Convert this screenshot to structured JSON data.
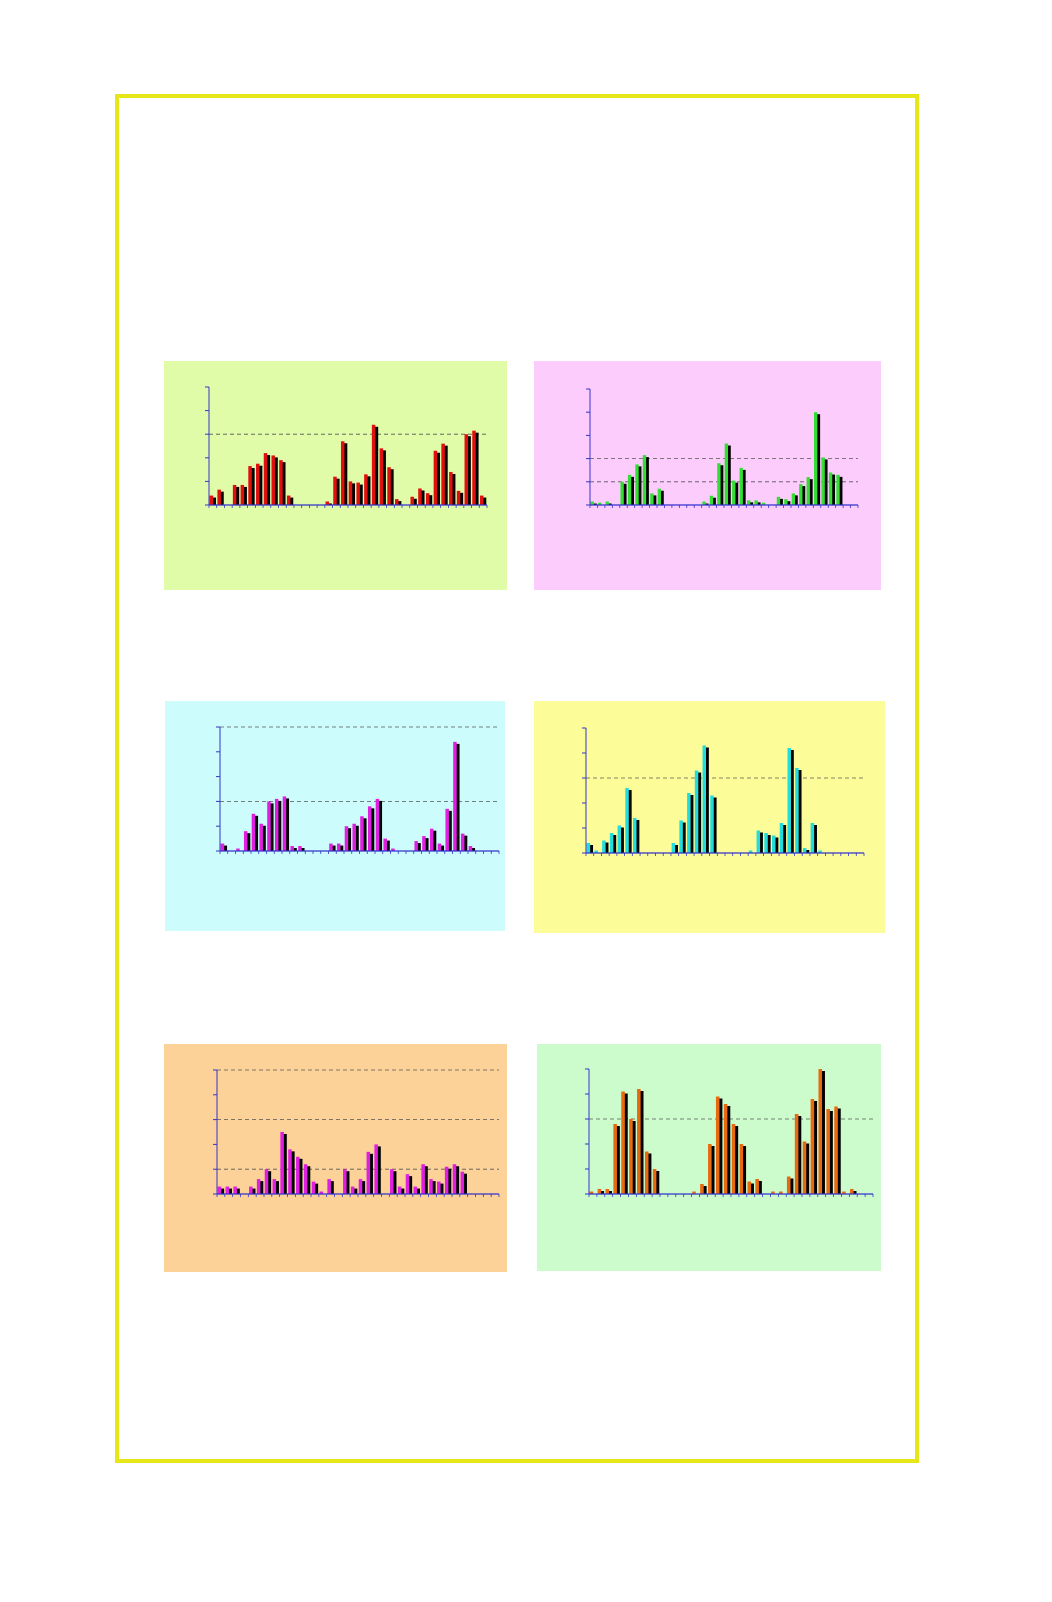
{
  "frame": {
    "border_color": "#e6e619"
  },
  "chart_data": [
    {
      "type": "bar",
      "panel_bg": "#e0fca8",
      "bar_color": "#e01010",
      "shadow_color": "#000000",
      "axis_color": "#3333cc",
      "ylim": [
        0,
        10
      ],
      "y_ticks": [
        0,
        2,
        4,
        6,
        8,
        10
      ],
      "gridlines": [
        6
      ],
      "values": [
        0.8,
        1.3,
        0,
        1.7,
        1.7,
        3.3,
        3.5,
        4.4,
        4.2,
        3.8,
        0.8,
        0,
        0,
        0,
        0,
        0.3,
        2.4,
        5.4,
        2.0,
        1.9,
        2.6,
        6.8,
        4.8,
        3.2,
        0.5,
        0,
        0.7,
        1.4,
        1.0,
        4.6,
        5.2,
        2.8,
        1.2,
        6.0,
        6.3,
        0.8
      ]
    },
    {
      "type": "bar",
      "panel_bg": "#fcccfc",
      "bar_color": "#33dd33",
      "shadow_color": "#000000",
      "axis_color": "#3333cc",
      "ylim": [
        0,
        10
      ],
      "y_ticks": [
        0,
        2,
        4,
        6,
        8,
        10
      ],
      "gridlines": [
        2,
        4
      ],
      "values": [
        0.3,
        0.2,
        0.3,
        0,
        2.0,
        2.6,
        3.5,
        4.3,
        1.0,
        1.4,
        0,
        0,
        0,
        0,
        0,
        0.3,
        0.8,
        3.6,
        5.3,
        2.1,
        3.2,
        0.4,
        0.4,
        0.2,
        0,
        0.7,
        0.5,
        1.0,
        1.8,
        2.4,
        8.0,
        4.1,
        2.8,
        2.6,
        0,
        0
      ]
    },
    {
      "type": "bar",
      "panel_bg": "#ccfcfc",
      "bar_color": "#e020e0",
      "shadow_color": "#000000",
      "axis_color": "#3333cc",
      "ylim": [
        0,
        5
      ],
      "y_ticks": [
        0,
        1,
        2,
        3,
        4,
        5
      ],
      "gridlines": [
        2,
        5
      ],
      "values": [
        0.3,
        0,
        0.1,
        0.8,
        1.5,
        1.1,
        2.0,
        2.1,
        2.2,
        0.2,
        0.2,
        0,
        0,
        0,
        0.3,
        0.3,
        1.0,
        1.1,
        1.4,
        1.8,
        2.1,
        0.5,
        0.1,
        0,
        0,
        0.4,
        0.6,
        0.9,
        0.3,
        1.7,
        4.4,
        0.7,
        0.2,
        0,
        0,
        0
      ]
    },
    {
      "type": "bar",
      "panel_bg": "#fcfc98",
      "bar_color": "#22dddd",
      "shadow_color": "#000000",
      "axis_color": "#3333cc",
      "ylim": [
        0,
        5
      ],
      "y_ticks": [
        0,
        1,
        2,
        3,
        4,
        5
      ],
      "gridlines": [
        3
      ],
      "values": [
        0.4,
        0.1,
        0.5,
        0.8,
        1.1,
        2.6,
        1.4,
        0,
        0,
        0,
        0,
        0.4,
        1.3,
        2.4,
        3.3,
        4.3,
        2.3,
        0,
        0,
        0,
        0,
        0.1,
        0.9,
        0.8,
        0.7,
        1.2,
        4.2,
        3.4,
        0.2,
        1.2,
        0.1,
        0,
        0,
        0,
        0,
        0
      ]
    },
    {
      "type": "bar",
      "panel_bg": "#fcd298",
      "bar_color": "#e020e0",
      "shadow_color": "#000000",
      "axis_color": "#3333cc",
      "ylim": [
        0,
        5
      ],
      "y_ticks": [
        0,
        1,
        2,
        3,
        4,
        5
      ],
      "gridlines": [
        1,
        3,
        5
      ],
      "values": [
        0.3,
        0.3,
        0.3,
        0,
        0.3,
        0.6,
        1.0,
        0.6,
        2.5,
        1.8,
        1.5,
        1.2,
        0.5,
        0.1,
        0.6,
        0,
        1.0,
        0.3,
        0.6,
        1.7,
        2.0,
        0,
        1.0,
        0.3,
        0.8,
        0.3,
        1.2,
        0.6,
        0.5,
        1.1,
        1.2,
        0.9,
        0,
        0,
        0,
        0
      ]
    },
    {
      "type": "bar",
      "panel_bg": "#ccfccc",
      "bar_color": "#e86a10",
      "shadow_color": "#000000",
      "axis_color": "#3333cc",
      "ylim": [
        0,
        5
      ],
      "y_ticks": [
        0,
        1,
        2,
        3,
        4,
        5
      ],
      "gridlines": [
        3
      ],
      "values": [
        0.1,
        0.2,
        0.2,
        2.8,
        4.1,
        3.0,
        4.2,
        1.7,
        1.0,
        0,
        0,
        0,
        0,
        0.1,
        0.4,
        2.0,
        3.9,
        3.6,
        2.8,
        2.0,
        0.5,
        0.6,
        0,
        0.1,
        0.1,
        0.7,
        3.2,
        2.1,
        3.8,
        5.0,
        3.4,
        3.5,
        0.1,
        0.2,
        0,
        0
      ]
    }
  ]
}
